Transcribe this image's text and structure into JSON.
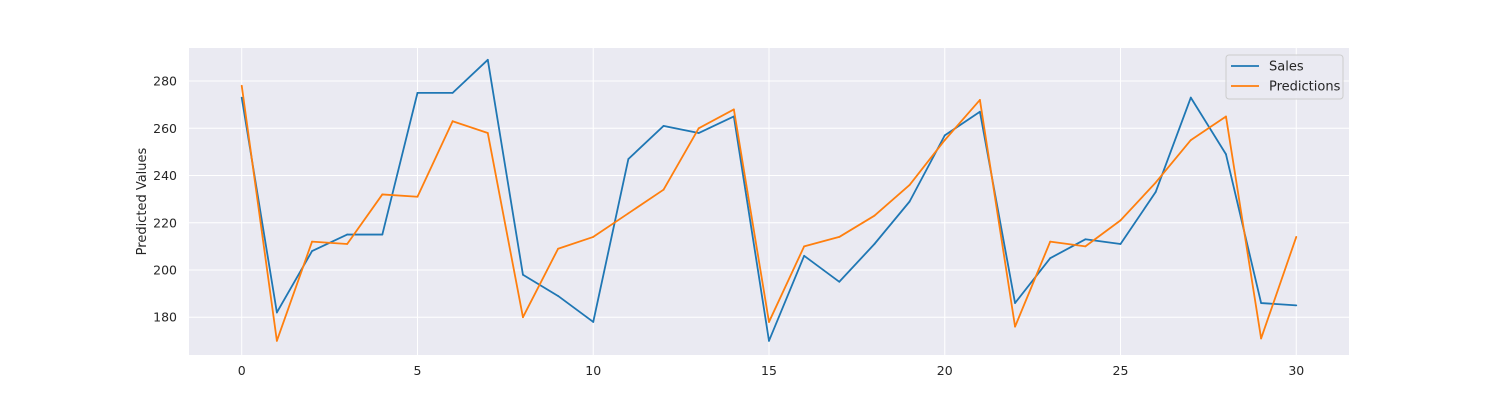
{
  "chart_data": {
    "type": "line",
    "title": "",
    "xlabel": "",
    "ylabel": "Predicted Values",
    "xlim": [
      -1.5,
      31.5
    ],
    "ylim": [
      164,
      294
    ],
    "xticks": [
      0,
      5,
      10,
      15,
      20,
      25,
      30
    ],
    "yticks": [
      180,
      200,
      220,
      240,
      260,
      280
    ],
    "grid": true,
    "background": "#eaeaf2",
    "legend": "top-right",
    "x": [
      0,
      1,
      2,
      3,
      4,
      5,
      6,
      7,
      8,
      9,
      10,
      11,
      12,
      13,
      14,
      15,
      16,
      17,
      18,
      19,
      20,
      21,
      22,
      23,
      24,
      25,
      26,
      27,
      28,
      29,
      30
    ],
    "series": [
      {
        "name": "Sales",
        "color": "#1f77b4",
        "values": [
          273,
          182,
          208,
          215,
          215,
          275,
          275,
          289,
          198,
          189,
          178,
          247,
          261,
          258,
          265,
          170,
          206,
          195,
          211,
          229,
          257,
          267,
          186,
          205,
          213,
          211,
          233,
          273,
          249,
          186,
          185
        ]
      },
      {
        "name": "Predictions",
        "color": "#ff7f0e",
        "values": [
          278,
          170,
          212,
          211,
          232,
          231,
          263,
          258,
          180,
          209,
          214,
          224,
          234,
          260,
          268,
          178,
          210,
          214,
          223,
          236,
          255,
          272,
          176,
          212,
          210,
          221,
          237,
          255,
          265,
          171,
          214
        ]
      }
    ]
  }
}
